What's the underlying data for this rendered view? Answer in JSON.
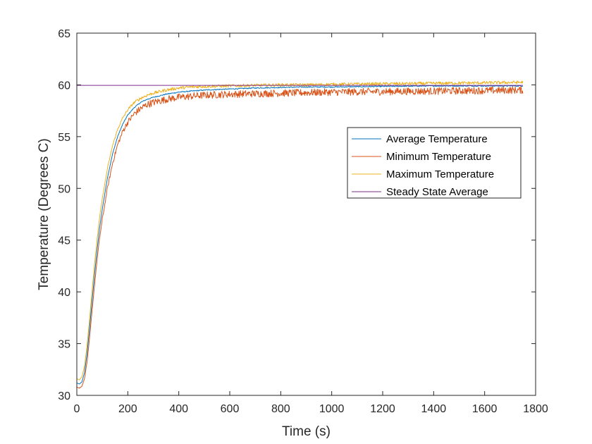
{
  "chart_data": {
    "type": "line",
    "title": "",
    "xlabel": "Time (s)",
    "ylabel": "Temperature (Degrees C)",
    "xlim": [
      0,
      1800
    ],
    "ylim": [
      30,
      65
    ],
    "xticks": [
      0,
      200,
      400,
      600,
      800,
      1000,
      1200,
      1400,
      1600,
      1800
    ],
    "yticks": [
      30,
      35,
      40,
      45,
      50,
      55,
      60,
      65
    ],
    "grid": false,
    "legend_position": "upper-right",
    "series": [
      {
        "name": "Average Temperature",
        "color": "#0072BD",
        "x": [
          0,
          10,
          20,
          30,
          40,
          50,
          60,
          70,
          80,
          90,
          100,
          120,
          140,
          160,
          180,
          200,
          225,
          250,
          275,
          300,
          350,
          400,
          450,
          500,
          600,
          700,
          800,
          900,
          1000,
          1200,
          1400,
          1600,
          1750
        ],
        "y": [
          31.2,
          31.1,
          31.3,
          32.2,
          34.0,
          36.5,
          39.2,
          41.8,
          44.2,
          46.3,
          48.0,
          51.0,
          53.3,
          55.0,
          56.2,
          57.1,
          57.8,
          58.3,
          58.6,
          58.8,
          59.1,
          59.3,
          59.4,
          59.5,
          59.6,
          59.7,
          59.75,
          59.8,
          59.8,
          59.85,
          59.9,
          59.9,
          59.9
        ],
        "noise": 0.05
      },
      {
        "name": "Minimum Temperature",
        "color": "#D95319",
        "x": [
          0,
          10,
          20,
          30,
          40,
          50,
          60,
          70,
          80,
          90,
          100,
          120,
          140,
          160,
          180,
          200,
          225,
          250,
          275,
          300,
          350,
          400,
          450,
          500,
          600,
          700,
          800,
          900,
          1000,
          1200,
          1400,
          1600,
          1750
        ],
        "y": [
          30.8,
          30.7,
          30.9,
          31.6,
          33.2,
          35.5,
          38.2,
          40.8,
          43.2,
          45.3,
          47.0,
          50.0,
          52.4,
          54.2,
          55.5,
          56.4,
          57.2,
          57.7,
          58.1,
          58.3,
          58.6,
          58.8,
          58.9,
          59.0,
          59.1,
          59.15,
          59.2,
          59.25,
          59.3,
          59.35,
          59.4,
          59.45,
          59.5
        ],
        "noise": 0.35
      },
      {
        "name": "Maximum Temperature",
        "color": "#EDB120",
        "x": [
          0,
          10,
          20,
          30,
          40,
          50,
          60,
          70,
          80,
          90,
          100,
          120,
          140,
          160,
          180,
          200,
          225,
          250,
          275,
          300,
          350,
          400,
          450,
          500,
          600,
          700,
          800,
          900,
          1000,
          1200,
          1400,
          1600,
          1750
        ],
        "y": [
          31.6,
          31.5,
          31.8,
          32.8,
          34.8,
          37.4,
          40.2,
          42.8,
          45.2,
          47.3,
          49.0,
          51.9,
          54.1,
          55.7,
          56.8,
          57.6,
          58.3,
          58.7,
          59.0,
          59.2,
          59.5,
          59.7,
          59.8,
          59.85,
          59.9,
          59.95,
          60.0,
          60.0,
          60.05,
          60.1,
          60.15,
          60.2,
          60.25
        ],
        "noise": 0.15
      },
      {
        "name": "Steady State Average",
        "color": "#7E2F8E",
        "x": [
          0,
          1750
        ],
        "y": [
          59.95,
          59.95
        ],
        "noise": 0
      }
    ]
  }
}
